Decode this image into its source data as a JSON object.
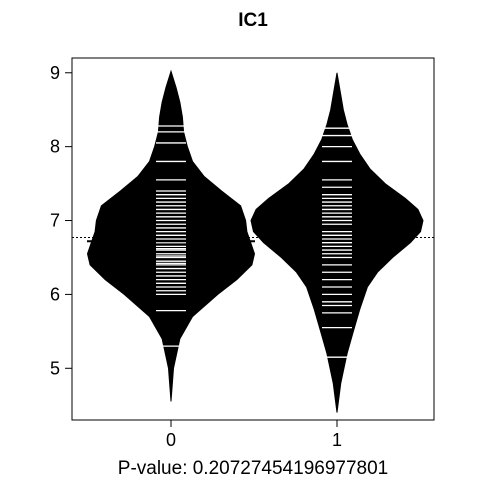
{
  "chart_data": {
    "type": "beanplot",
    "title": "IC1",
    "xlabel": "P-value: 0.20727454196977801",
    "ylabel": "",
    "categories": [
      "0",
      "1"
    ],
    "ylim": [
      4.3,
      9.2
    ],
    "yticks": [
      "5",
      "6",
      "7",
      "8",
      "9"
    ],
    "overall_mean": 6.77,
    "groups": [
      {
        "category": "0",
        "mean": 6.72,
        "density_y": [
          4.55,
          5.0,
          5.4,
          5.7,
          6.0,
          6.2,
          6.4,
          6.55,
          6.7,
          6.85,
          7.0,
          7.2,
          7.4,
          7.6,
          7.8,
          8.0,
          8.2,
          8.4,
          8.6,
          8.8,
          9.02
        ],
        "density_w": [
          0.0,
          0.02,
          0.07,
          0.17,
          0.37,
          0.52,
          0.64,
          0.66,
          0.63,
          0.6,
          0.59,
          0.55,
          0.4,
          0.26,
          0.17,
          0.13,
          0.1,
          0.09,
          0.07,
          0.04,
          0.0
        ],
        "observations": [
          5.3,
          5.78,
          6.0,
          6.05,
          6.1,
          6.15,
          6.2,
          6.25,
          6.3,
          6.35,
          6.4,
          6.42,
          6.45,
          6.5,
          6.52,
          6.55,
          6.6,
          6.62,
          6.65,
          6.7,
          6.75,
          6.8,
          6.85,
          6.9,
          6.95,
          7.0,
          7.05,
          7.1,
          7.15,
          7.2,
          7.25,
          7.3,
          7.35,
          7.4,
          7.55,
          7.8,
          8.05,
          8.2,
          8.28
        ]
      },
      {
        "category": "1",
        "mean": 6.9,
        "density_y": [
          4.4,
          4.8,
          5.2,
          5.5,
          5.8,
          6.1,
          6.3,
          6.5,
          6.7,
          6.85,
          7.0,
          7.15,
          7.3,
          7.5,
          7.7,
          7.9,
          8.1,
          8.3,
          8.5,
          8.7,
          9.0
        ],
        "density_w": [
          0.0,
          0.03,
          0.08,
          0.13,
          0.18,
          0.24,
          0.32,
          0.44,
          0.58,
          0.66,
          0.68,
          0.64,
          0.54,
          0.38,
          0.26,
          0.18,
          0.12,
          0.08,
          0.05,
          0.03,
          0.0
        ],
        "observations": [
          5.15,
          5.55,
          5.75,
          5.85,
          5.9,
          6.0,
          6.1,
          6.2,
          6.3,
          6.4,
          6.5,
          6.55,
          6.6,
          6.65,
          6.7,
          6.75,
          6.8,
          6.85,
          6.9,
          6.95,
          7.0,
          7.05,
          7.1,
          7.15,
          7.2,
          7.25,
          7.3,
          7.35,
          7.45,
          7.55,
          7.8,
          8.0,
          8.15,
          8.25
        ]
      }
    ],
    "colors": {
      "bean": "#000000",
      "lines": "#ffffff",
      "background": "#ffffff"
    }
  }
}
